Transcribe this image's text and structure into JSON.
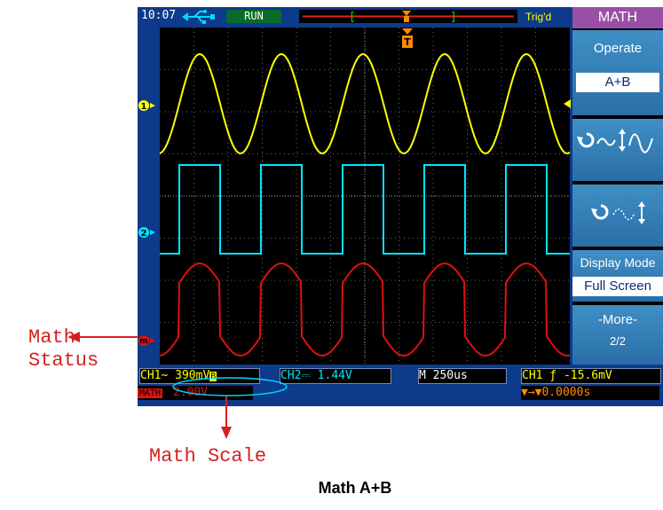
{
  "top_bar": {
    "time": "10:07",
    "run_status": "RUN",
    "trigger_status": "Trig'd"
  },
  "menu": {
    "title": "MATH",
    "operate_label": "Operate",
    "operate_value": "A+B",
    "display_mode_label": "Display Mode",
    "display_mode_value": "Full Screen",
    "more_label": "-More-",
    "page": "2/2"
  },
  "status": {
    "ch1": "CH1~  390mV",
    "ch1_badge": "B",
    "ch2": "CH2⎓  1.44V",
    "timebase": "M 250us",
    "trigger": "CH1 ƒ -15.6mV",
    "math_tag": "MATH",
    "math_scale": "2.00V",
    "trigger_pos": "▼→▼0.0000s"
  },
  "markers": {
    "ch1": "1",
    "ch2": "2",
    "math": "m",
    "trigger": "T"
  },
  "annotations": {
    "math_status": "Math\nStatus",
    "math_scale": "Math Scale"
  },
  "caption": "Math A+B",
  "colors": {
    "ch1": "#ffff00",
    "ch2": "#00e5ff",
    "math": "#e01010",
    "annotation": "#d62020"
  }
}
